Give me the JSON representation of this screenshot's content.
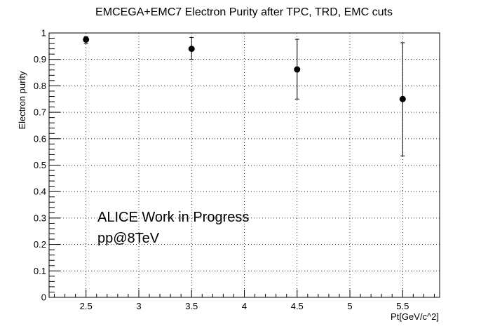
{
  "chart_data": {
    "type": "scatter",
    "title": "EMCEGA+EMC7 Electron Purity after TPC, TRD, EMC cuts",
    "xlabel": "Pt[GeV/c^2]",
    "ylabel": "Electron purity",
    "xlim": [
      2.15,
      5.85
    ],
    "ylim": [
      0,
      1
    ],
    "xticks": [
      "2.5",
      "3",
      "3.5",
      "4",
      "4.5",
      "5",
      "5.5"
    ],
    "yticks": [
      "0",
      "0.1",
      "0.2",
      "0.3",
      "0.4",
      "0.5",
      "0.6",
      "0.7",
      "0.8",
      "0.9",
      "1"
    ],
    "grid": true,
    "series": [
      {
        "x": [
          2.5,
          3.5,
          4.5,
          5.5
        ],
        "y": [
          0.975,
          0.94,
          0.862,
          0.75
        ],
        "y_err_low": [
          0.015,
          0.04,
          0.112,
          0.215
        ],
        "y_err_high": [
          0.011,
          0.043,
          0.114,
          0.213
        ]
      }
    ],
    "annotations": [
      "ALICE Work in Progress",
      "pp@8TeV"
    ]
  }
}
